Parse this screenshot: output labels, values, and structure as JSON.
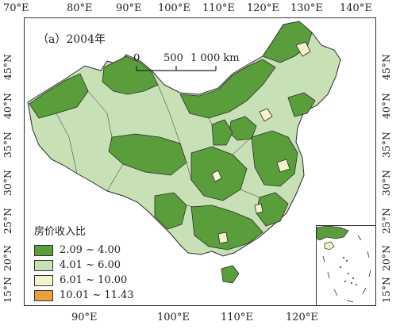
{
  "panel_label": "（a）2004年",
  "axes": {
    "top_lon": [
      "70°E",
      "80°E",
      "90°E",
      "100°E",
      "110°E",
      "120°E",
      "130°E",
      "140°E"
    ],
    "bottom_lon": [
      "90°E",
      "100°E",
      "110°E",
      "120°E"
    ],
    "lat": [
      "45°N",
      "40°N",
      "35°N",
      "30°N",
      "25°N",
      "20°N",
      "15°N"
    ]
  },
  "scale_bar": {
    "ticks": [
      "0",
      "500",
      "1 000 km"
    ]
  },
  "legend": {
    "title": "房价收入比",
    "items": [
      {
        "label": "2.09 ~ 4.00",
        "color": "#5a9e3c"
      },
      {
        "label": "4.01 ~ 6.00",
        "color": "#c7e0b6"
      },
      {
        "label": "6.01 ~ 10.00",
        "color": "#f4f3cc"
      },
      {
        "label": "10.01 ~ 11.43",
        "color": "#e8a23a"
      }
    ]
  },
  "colors": {
    "dark_green": "#5a9e3c",
    "light_green": "#c7e0b6",
    "pale_yellow": "#f4f3cc",
    "orange": "#e8a23a",
    "border": "#2b2b2b"
  }
}
